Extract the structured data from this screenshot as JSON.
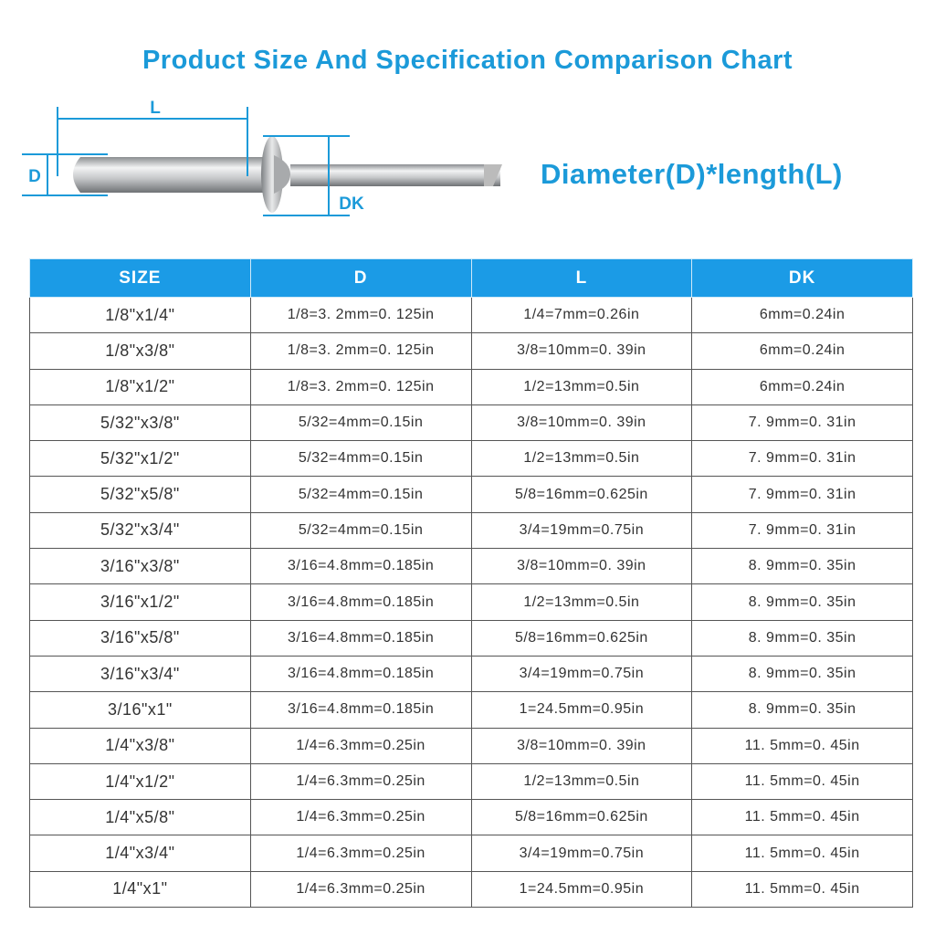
{
  "title": "Product Size And Specification Comparison Chart",
  "diagram": {
    "label_l": "L",
    "label_d": "D",
    "label_dk": "DK"
  },
  "subtitle": "Diameter(D)*length(L)",
  "colors": {
    "accent": "#1b9ad9",
    "header_bg": "#1b9be6"
  },
  "table": {
    "headers": [
      "SIZE",
      "D",
      "L",
      "DK"
    ],
    "rows": [
      [
        "1/8\"x1/4\"",
        "1/8=3. 2mm=0. 125in",
        "1/4=7mm=0.26in",
        "6mm=0.24in"
      ],
      [
        "1/8\"x3/8\"",
        "1/8=3. 2mm=0. 125in",
        "3/8=10mm=0. 39in",
        "6mm=0.24in"
      ],
      [
        "1/8\"x1/2\"",
        "1/8=3. 2mm=0. 125in",
        "1/2=13mm=0.5in",
        "6mm=0.24in"
      ],
      [
        "5/32\"x3/8\"",
        "5/32=4mm=0.15in",
        "3/8=10mm=0. 39in",
        "7. 9mm=0. 31in"
      ],
      [
        "5/32\"x1/2\"",
        "5/32=4mm=0.15in",
        "1/2=13mm=0.5in",
        "7. 9mm=0. 31in"
      ],
      [
        "5/32\"x5/8\"",
        "5/32=4mm=0.15in",
        "5/8=16mm=0.625in",
        "7. 9mm=0. 31in"
      ],
      [
        "5/32\"x3/4\"",
        "5/32=4mm=0.15in",
        "3/4=19mm=0.75in",
        "7. 9mm=0. 31in"
      ],
      [
        "3/16\"x3/8\"",
        "3/16=4.8mm=0.185in",
        "3/8=10mm=0. 39in",
        "8. 9mm=0. 35in"
      ],
      [
        "3/16\"x1/2\"",
        "3/16=4.8mm=0.185in",
        "1/2=13mm=0.5in",
        "8. 9mm=0. 35in"
      ],
      [
        "3/16\"x5/8\"",
        "3/16=4.8mm=0.185in",
        "5/8=16mm=0.625in",
        "8. 9mm=0. 35in"
      ],
      [
        "3/16\"x3/4\"",
        "3/16=4.8mm=0.185in",
        "3/4=19mm=0.75in",
        "8. 9mm=0. 35in"
      ],
      [
        "3/16\"x1\"",
        "3/16=4.8mm=0.185in",
        "1=24.5mm=0.95in",
        "8. 9mm=0. 35in"
      ],
      [
        "1/4\"x3/8\"",
        "1/4=6.3mm=0.25in",
        "3/8=10mm=0. 39in",
        "11. 5mm=0. 45in"
      ],
      [
        "1/4\"x1/2\"",
        "1/4=6.3mm=0.25in",
        "1/2=13mm=0.5in",
        "11. 5mm=0. 45in"
      ],
      [
        "1/4\"x5/8\"",
        "1/4=6.3mm=0.25in",
        "5/8=16mm=0.625in",
        "11. 5mm=0. 45in"
      ],
      [
        "1/4\"x3/4\"",
        "1/4=6.3mm=0.25in",
        "3/4=19mm=0.75in",
        "11. 5mm=0. 45in"
      ],
      [
        "1/4\"x1\"",
        "1/4=6.3mm=0.25in",
        "1=24.5mm=0.95in",
        "11. 5mm=0. 45in"
      ]
    ]
  }
}
